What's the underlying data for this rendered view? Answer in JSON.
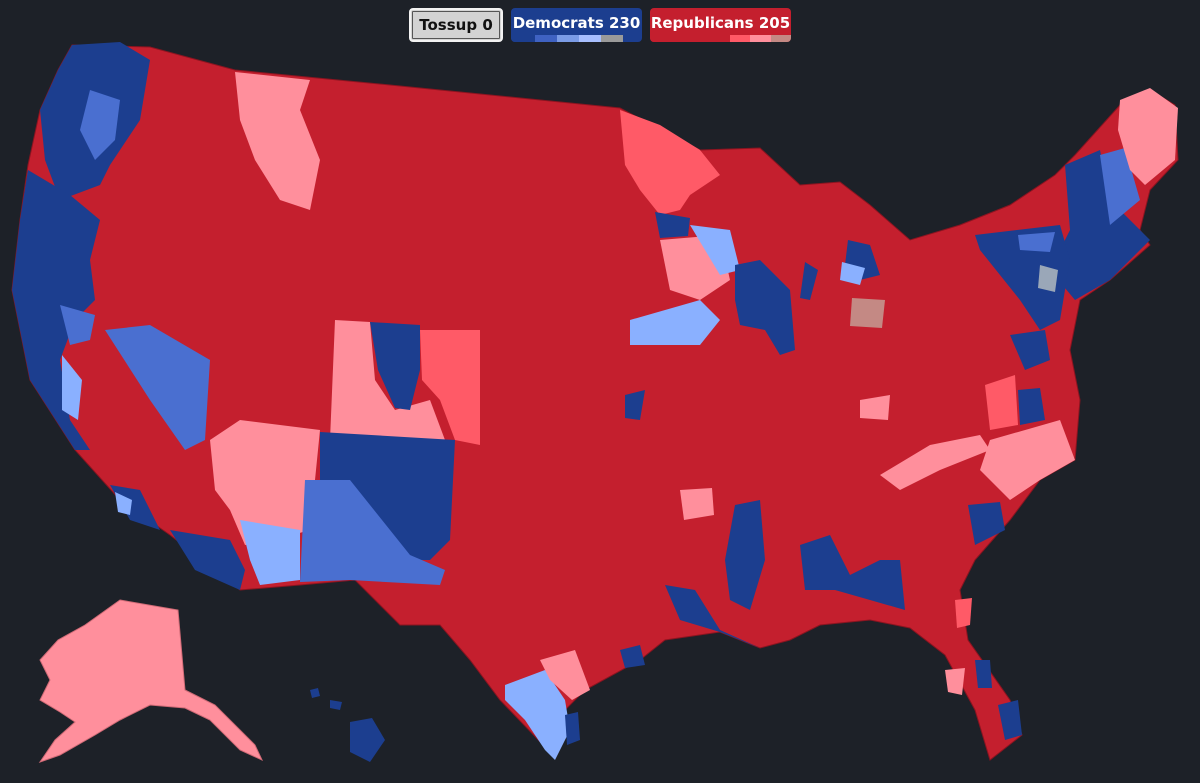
{
  "legend": {
    "tossup": {
      "label": "Tossup",
      "count": "0"
    },
    "dem": {
      "label": "Democrats",
      "count": "230",
      "segments": [
        "#1c3e8f",
        "#3f62c2",
        "#7b9ce6",
        "#a8bfff",
        "#9a9a9a"
      ]
    },
    "rep": {
      "label": "Republicans",
      "count": "205",
      "segments": [
        "#c41f2e",
        "#c41f2e",
        "#ff5a67",
        "#ff8f9c",
        "#c48984"
      ]
    }
  },
  "colors": {
    "background": "#1d2128",
    "safe_r": "#c41f2e",
    "likely_r": "#ff5a67",
    "lean_r": "#ff8f9c",
    "safe_d": "#1c3e8f",
    "likely_d": "#4a6fd0",
    "lean_d": "#8ab0ff",
    "tilt_r": "#c48984",
    "tilt_d": "#9aa7b8"
  },
  "map": {
    "type": "us-house-district-map",
    "regions": [
      {
        "name": "contiguous-us",
        "rating": "safe_r"
      },
      {
        "name": "alaska",
        "rating": "lean_r"
      },
      {
        "name": "hawaii",
        "rating": "safe_d"
      },
      {
        "name": "washington-west",
        "rating": "safe_d"
      },
      {
        "name": "washington-central",
        "rating": "likely_d"
      },
      {
        "name": "oregon-coast",
        "rating": "safe_d"
      },
      {
        "name": "oregon-valley",
        "rating": "likely_d"
      },
      {
        "name": "california-coast",
        "rating": "safe_d"
      },
      {
        "name": "nevada-west",
        "rating": "likely_d"
      },
      {
        "name": "montana-west",
        "rating": "lean_r"
      },
      {
        "name": "arizona-north",
        "rating": "lean_r"
      },
      {
        "name": "arizona-south",
        "rating": "lean_d"
      },
      {
        "name": "new-mexico-north",
        "rating": "safe_d"
      },
      {
        "name": "new-mexico-south",
        "rating": "likely_d"
      },
      {
        "name": "colorado-west",
        "rating": "lean_r"
      },
      {
        "name": "colorado-front-range",
        "rating": "safe_d"
      },
      {
        "name": "colorado-east",
        "rating": "likely_r"
      },
      {
        "name": "minnesota-north",
        "rating": "likely_r"
      },
      {
        "name": "wisconsin-west",
        "rating": "lean_r"
      },
      {
        "name": "iowa-east",
        "rating": "lean_d"
      },
      {
        "name": "illinois-chicago",
        "rating": "safe_d"
      },
      {
        "name": "michigan-southeast",
        "rating": "safe_d"
      },
      {
        "name": "ohio-north",
        "rating": "tilt_r"
      },
      {
        "name": "pennsylvania-east",
        "rating": "tilt_d"
      },
      {
        "name": "new-england",
        "rating": "safe_d"
      },
      {
        "name": "new-hampshire",
        "rating": "likely_d"
      },
      {
        "name": "maine",
        "rating": "lean_r"
      },
      {
        "name": "virginia-north",
        "rating": "safe_d"
      },
      {
        "name": "north-carolina",
        "rating": "lean_r"
      },
      {
        "name": "tennessee-east",
        "rating": "lean_r"
      },
      {
        "name": "mississippi-delta",
        "rating": "safe_d"
      },
      {
        "name": "alabama-black-belt",
        "rating": "safe_d"
      },
      {
        "name": "georgia-southwest",
        "rating": "safe_d"
      },
      {
        "name": "louisiana-south",
        "rating": "safe_d"
      },
      {
        "name": "texas-rio-grande",
        "rating": "lean_d"
      },
      {
        "name": "florida-south",
        "rating": "safe_d"
      }
    ]
  }
}
